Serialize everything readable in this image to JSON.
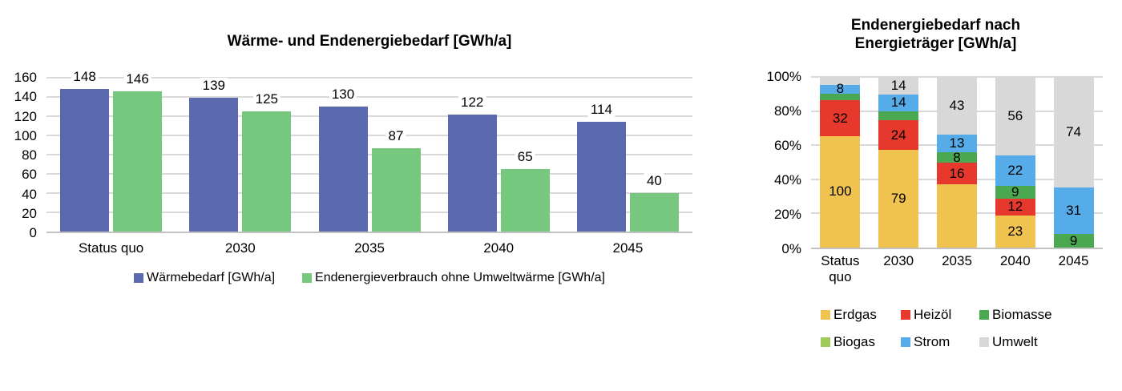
{
  "chart_data": [
    {
      "type": "bar",
      "title": "Wärme- und Endenergiebedarf [GWh/a]",
      "categories": [
        "Status quo",
        "2030",
        "2035",
        "2040",
        "2045"
      ],
      "series": [
        {
          "name": "Wärmebedarf [GWh/a]",
          "color": "#5B69AF",
          "values": [
            148,
            139,
            130,
            122,
            114
          ],
          "labels": [
            "148",
            "139",
            "130",
            "122",
            "114"
          ]
        },
        {
          "name": "Endenergieverbrauch ohne Umweltwärme [GWh/a]",
          "color": "#76C87E",
          "values": [
            146,
            125,
            87,
            65,
            40
          ],
          "labels": [
            "146",
            "125",
            "87",
            "65",
            "40"
          ]
        }
      ],
      "xlabel": "",
      "ylabel": "",
      "ylim": [
        0,
        160
      ],
      "ytick_step": 20,
      "grid": true,
      "legend_position": "bottom"
    },
    {
      "type": "bar",
      "stacked": true,
      "percent": true,
      "title": "Endenergiebedarf nach Energieträger [GWh/a]",
      "title_lines": [
        "Endenergiebedarf nach",
        "Energieträger [GWh/a]"
      ],
      "categories": [
        "Status quo",
        "2030",
        "2035",
        "2040",
        "2045"
      ],
      "note": "values without a visible data label in the image are estimated from segment proportions; only strings in 'labels' are rendered",
      "series": [
        {
          "name": "Erdgas",
          "color": "#F0C350",
          "values": [
            100,
            79,
            47,
            23,
            0
          ],
          "labels": [
            "100",
            "79",
            "",
            "23",
            ""
          ]
        },
        {
          "name": "Heizöl",
          "color": "#E6382C",
          "values": [
            32,
            24,
            16,
            12,
            0
          ],
          "labels": [
            "32",
            "24",
            "16",
            "12",
            ""
          ]
        },
        {
          "name": "Biomasse",
          "color": "#4AA850",
          "values": [
            6,
            7,
            8,
            9,
            9
          ],
          "labels": [
            "",
            "",
            "8",
            "9",
            "9"
          ]
        },
        {
          "name": "Biogas",
          "color": "#9FCB5B",
          "values": [
            0,
            0,
            0,
            0,
            0
          ],
          "labels": [
            "",
            "",
            "",
            "",
            ""
          ]
        },
        {
          "name": "Strom",
          "color": "#56ACE8",
          "values": [
            8,
            14,
            13,
            22,
            31
          ],
          "labels": [
            "8",
            "14",
            "13",
            "22",
            "31"
          ]
        },
        {
          "name": "Umwelt",
          "color": "#D8D8D8",
          "values": [
            7,
            14,
            43,
            56,
            74
          ],
          "labels": [
            "",
            "14",
            "43",
            "56",
            "74"
          ]
        }
      ],
      "yticks": [
        "100%",
        "80%",
        "60%",
        "40%",
        "20%",
        "0%"
      ],
      "ylim_percent": [
        0,
        100
      ],
      "grid": true,
      "legend_position": "bottom"
    }
  ],
  "style": {
    "gridline_color": "#D9D9D9",
    "axis_color": "#C2C2C2",
    "background": "#FFFFFF"
  }
}
